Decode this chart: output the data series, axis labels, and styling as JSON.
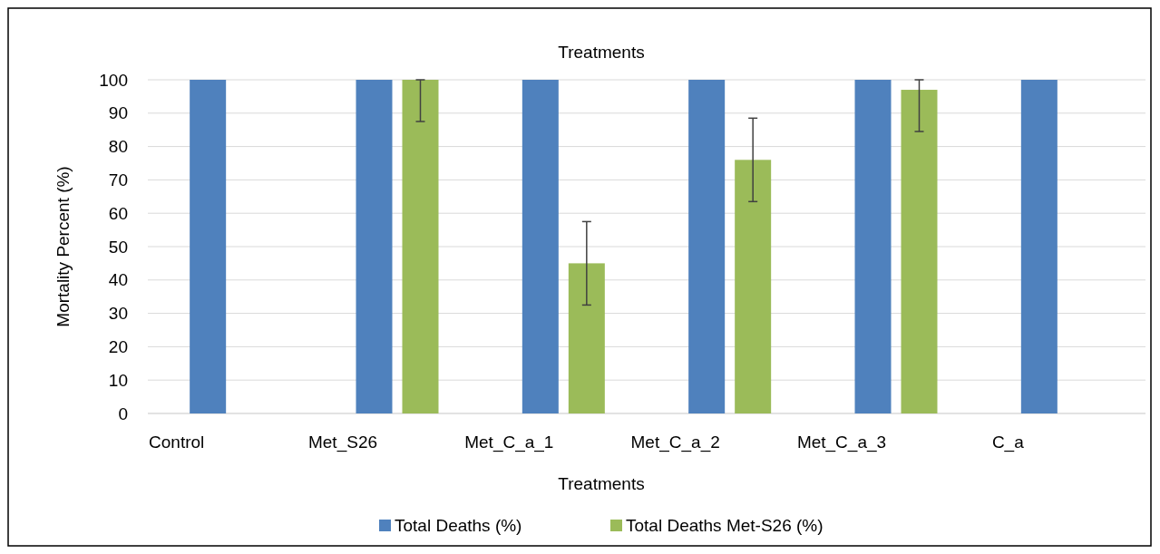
{
  "chart_data": {
    "type": "bar",
    "title": "Treatments",
    "xlabel": "Treatments",
    "ylabel": "Mortality Percent (%)",
    "categories": [
      "Control",
      "Met_S26",
      "Met_C_a_1",
      "Met_C_a_2",
      "Met_C_a_3",
      "C_a"
    ],
    "series": [
      {
        "name": "Total Deaths (%)",
        "color": "#4f81bd",
        "values": [
          100,
          100,
          100,
          100,
          100,
          100
        ]
      },
      {
        "name": "Total Deaths Met-S26 (%)",
        "color": "#9bbb59",
        "values": [
          null,
          100,
          45,
          76,
          97,
          null
        ],
        "errors": [
          null,
          [
            87.5,
            100
          ],
          [
            32.5,
            57.5
          ],
          [
            63.5,
            88.5
          ],
          [
            84.5,
            100
          ],
          null
        ]
      }
    ],
    "ylim": [
      0,
      100
    ],
    "yticks": [
      0,
      10,
      20,
      30,
      40,
      50,
      60,
      70,
      80,
      90,
      100
    ],
    "grid": "y",
    "legend": "bottom"
  }
}
